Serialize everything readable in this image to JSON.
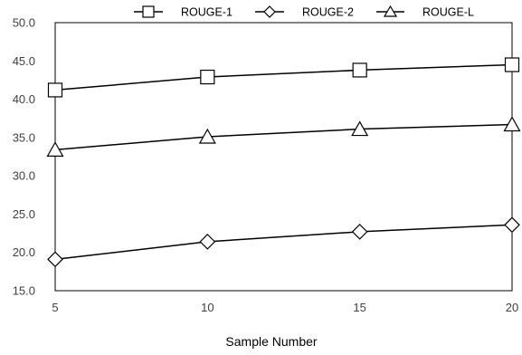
{
  "chart_data": {
    "type": "line",
    "xlabel": "Sample Number",
    "ylabel": "",
    "x": [
      5,
      10,
      15,
      20
    ],
    "xticks": [
      "5",
      "10",
      "15",
      "20"
    ],
    "xlim": [
      5,
      20
    ],
    "ylim": [
      15,
      50
    ],
    "yticks": [
      "15.0",
      "20.0",
      "25.0",
      "30.0",
      "35.0",
      "40.0",
      "45.0",
      "50.0"
    ],
    "grid": false,
    "legend": "top",
    "line_color": "#000000",
    "series": [
      {
        "name": "ROUGE-1",
        "marker": "square",
        "values": [
          41.2,
          42.9,
          43.8,
          44.5
        ]
      },
      {
        "name": "ROUGE-2",
        "marker": "diamond",
        "values": [
          19.1,
          21.4,
          22.7,
          23.6
        ]
      },
      {
        "name": "ROUGE-L",
        "marker": "triangle",
        "values": [
          33.4,
          35.1,
          36.1,
          36.7
        ]
      }
    ]
  }
}
